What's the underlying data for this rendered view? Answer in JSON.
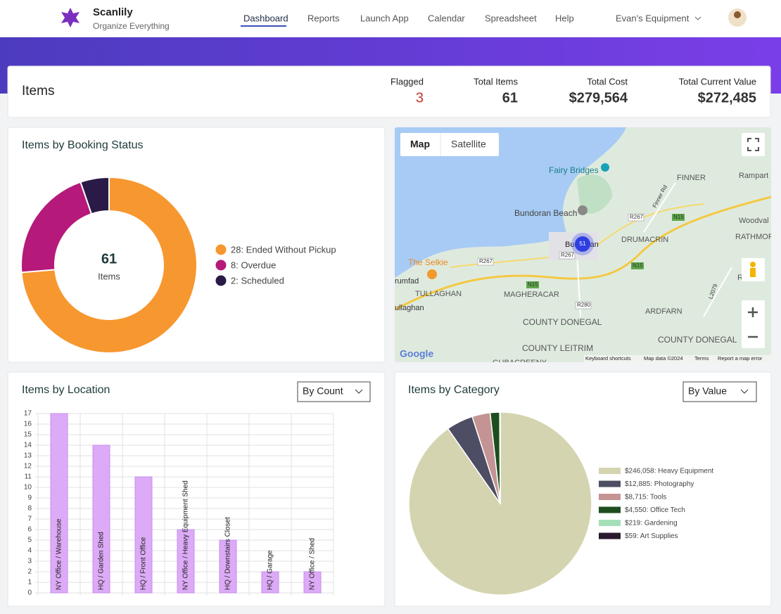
{
  "header": {
    "brand": "Scanlily",
    "tagline": "Organize Everything",
    "nav": [
      "Dashboard",
      "Reports",
      "Launch App",
      "Calendar",
      "Spreadsheet",
      "Help"
    ],
    "account": "Evan's Equipment"
  },
  "summary": {
    "title": "Items",
    "stats": [
      {
        "label": "Flagged",
        "value": 3
      },
      {
        "label": "Total Items",
        "value": 61
      },
      {
        "label": "Total Cost",
        "value": "$279,564"
      },
      {
        "label": "Total Current Value",
        "value": "$272,485"
      }
    ]
  },
  "map": {
    "buttons": [
      "Map",
      "Satellite"
    ],
    "labels": [
      "Fairy Bridges",
      "FINNER",
      "Rampart",
      "Bundoran Beach",
      "R267",
      "N15",
      "Woodval",
      "RATHMOR",
      "DRUMACRIN",
      "Bundoran",
      "R267",
      "N15",
      "The Selkie",
      "R267",
      "rumfad",
      "TULLAGHAN",
      "MAGHERACAR",
      "N15",
      "RATHO",
      "ullaghan",
      "R280",
      "ARDFARN",
      "COUNTY DONEGAL",
      "COUNTY DONEGAL",
      "COUNTY LEITRIM",
      "GUBACREENY",
      "Finner Rd",
      "L2079"
    ],
    "cluster": 51,
    "logo": "Google",
    "footer": [
      "Keyboard shortcuts",
      "Map data ©2024",
      "Terms",
      "Report a map error"
    ]
  },
  "chart_data": [
    {
      "type": "donut",
      "title": "Items by Booking Status",
      "labels": [
        "28: Ended Without Pickup",
        "8: Overdue",
        "2: Scheduled"
      ],
      "values": [
        28,
        8,
        2
      ],
      "colors": [
        "#f7972f",
        "#b5197a",
        "#2a1a47"
      ],
      "center_value": 61,
      "center_label": "Items"
    },
    {
      "type": "bar",
      "title": "Items by Location",
      "control": "By Count",
      "categories": [
        "NY Office / Warehouse",
        "HQ / Garden Shed",
        "HQ / Front Office",
        "NY Office / Heavy Equipment Shed",
        "HQ / Downstairs Closet",
        "HQ / Garage",
        "NY Office / Shed"
      ],
      "values": [
        17,
        14,
        11,
        6,
        5,
        2,
        2
      ],
      "color": "#dcaaf6",
      "ylim": [
        0,
        17
      ],
      "yticks": [
        0,
        1,
        2,
        3,
        4,
        5,
        6,
        7,
        8,
        9,
        10,
        11,
        12,
        13,
        14,
        15,
        16,
        17
      ],
      "grid": true
    },
    {
      "type": "pie",
      "title": "Items by Category",
      "control": "By Value",
      "labels": [
        "$246,058: Heavy Equipment",
        "$12,885: Photography",
        "$8,715: Tools",
        "$4,550: Office Tech",
        "$219: Gardening",
        "$59: Art Supplies"
      ],
      "values": [
        246058,
        12885,
        8715,
        4550,
        219,
        59
      ],
      "colors": [
        "#d4d4b0",
        "#4d4d63",
        "#c49494",
        "#1e4d1e",
        "#a6e0b8",
        "#2a1a2e"
      ]
    }
  ]
}
